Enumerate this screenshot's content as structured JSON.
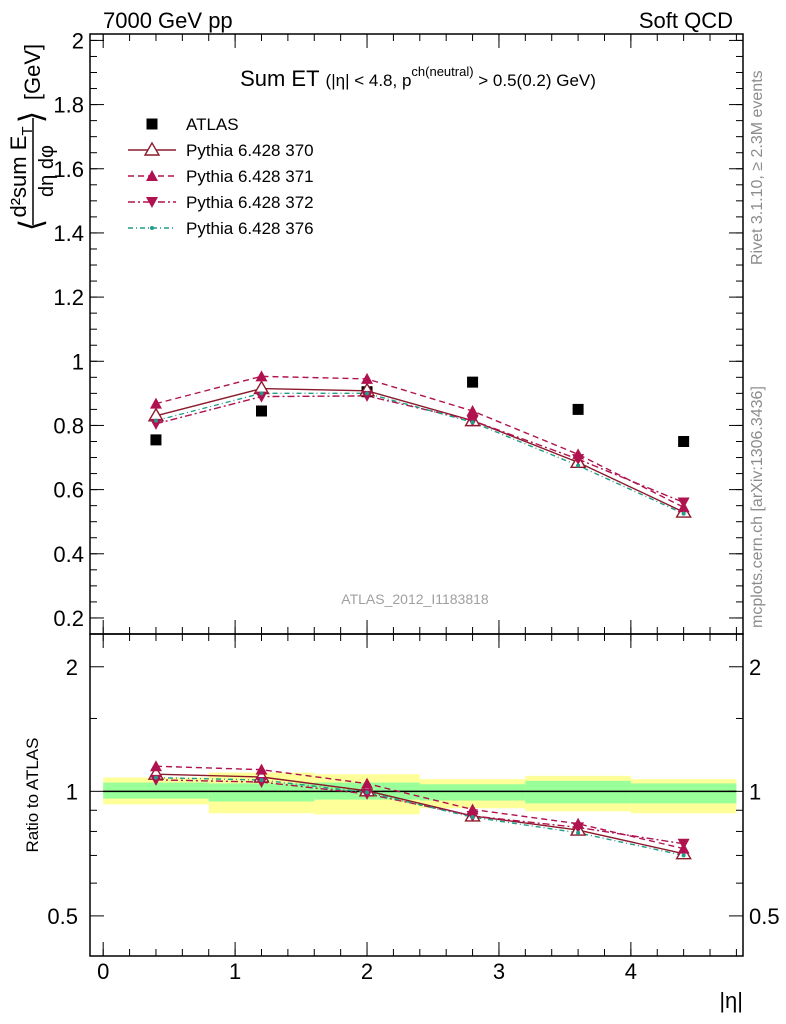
{
  "header": {
    "left": "7000 GeV pp",
    "right": "Soft QCD"
  },
  "side_notes": {
    "rivet": "Rivet 3.1.10, ≥ 2.3M events",
    "mcplots": "mcplots.cern.ch [arXiv:1306.3436]"
  },
  "watermark": "ATLAS_2012_I1183818",
  "chart_data": [
    {
      "type": "scatter",
      "panel": "main",
      "title_main": "Sum ET",
      "title_sub": "(|η| < 4.8, p",
      "title_sup": "ch(neutral)",
      "title_tail": " > 0.5(0.2) GeV)",
      "ylabel": {
        "bracket_open": "⟨",
        "num": "d²sum E",
        "num_sub": "T",
        "den": "dη dφ",
        "bracket_close": "⟩",
        "unit": "[GeV]"
      },
      "xlim": [
        -0.1,
        4.85
      ],
      "ylim": [
        0.15,
        2.02
      ],
      "y_ticks": [
        0.2,
        0.4,
        0.6,
        0.8,
        1,
        1.2,
        1.4,
        1.6,
        1.8,
        2
      ],
      "y_tick_labels": [
        "0.2",
        "0.4",
        "0.6",
        "0.8",
        "1",
        "1.2",
        "1.4",
        "1.6",
        "1.8",
        "2"
      ],
      "legend_position": "top-left",
      "x": [
        0.4,
        1.2,
        2.0,
        2.8,
        3.6,
        4.4
      ],
      "series": [
        {
          "name": "ATLAS",
          "values": [
            0.755,
            0.845,
            0.905,
            0.935,
            0.85,
            0.75
          ],
          "color": "#000000",
          "style": "data"
        },
        {
          "name": "Pythia 6.428 370",
          "values": [
            0.83,
            0.915,
            0.908,
            0.815,
            0.685,
            0.53
          ],
          "color": "#8b1a2b",
          "style": "solid-open-triangle"
        },
        {
          "name": "Pythia 6.428 371",
          "values": [
            0.868,
            0.953,
            0.945,
            0.845,
            0.71,
            0.545
          ],
          "color": "#b0124f",
          "style": "dashed-up-triangle"
        },
        {
          "name": "Pythia 6.428 372",
          "values": [
            0.805,
            0.89,
            0.892,
            0.815,
            0.695,
            0.56
          ],
          "color": "#b0124f",
          "style": "dashdot-down-triangle"
        },
        {
          "name": "Pythia 6.428 376",
          "values": [
            0.815,
            0.9,
            0.9,
            0.81,
            0.675,
            0.525
          ],
          "color": "#1f9e89",
          "style": "dashdot-dot"
        }
      ]
    },
    {
      "type": "line",
      "panel": "ratio",
      "ylabel": "Ratio to ATLAS",
      "xlabel": "|η|",
      "scale": "log",
      "xlim": [
        -0.1,
        4.85
      ],
      "ylim": [
        0.4,
        2.4
      ],
      "x_ticks": [
        0,
        1,
        2,
        3,
        4
      ],
      "x_tick_labels": [
        "0",
        "1",
        "2",
        "3",
        "4"
      ],
      "y_ticks": [
        0.5,
        1,
        2
      ],
      "y_tick_labels": [
        "0.5",
        "1",
        "2"
      ],
      "x": [
        0.4,
        1.2,
        2.0,
        2.8,
        3.6,
        4.4
      ],
      "bands": [
        {
          "x0": 0.0,
          "x1": 0.8,
          "yellow": [
            0.93,
            1.08
          ],
          "green": [
            0.96,
            1.05
          ]
        },
        {
          "x0": 0.8,
          "x1": 1.6,
          "yellow": [
            0.885,
            1.11
          ],
          "green": [
            0.945,
            1.045
          ]
        },
        {
          "x0": 1.6,
          "x1": 2.4,
          "yellow": [
            0.88,
            1.1
          ],
          "green": [
            0.955,
            1.05
          ]
        },
        {
          "x0": 2.4,
          "x1": 3.2,
          "yellow": [
            0.91,
            1.07
          ],
          "green": [
            0.95,
            1.04
          ]
        },
        {
          "x0": 3.2,
          "x1": 4.0,
          "yellow": [
            0.895,
            1.09
          ],
          "green": [
            0.935,
            1.06
          ]
        },
        {
          "x0": 4.0,
          "x1": 4.8,
          "yellow": [
            0.885,
            1.07
          ],
          "green": [
            0.935,
            1.045
          ]
        }
      ],
      "series": [
        {
          "name": "Pythia 6.428 370",
          "values": [
            1.1,
            1.083,
            1.003,
            0.872,
            0.806,
            0.707
          ],
          "color": "#8b1a2b",
          "style": "solid-open-triangle"
        },
        {
          "name": "Pythia 6.428 371",
          "values": [
            1.15,
            1.128,
            1.044,
            0.904,
            0.835,
            0.727
          ],
          "color": "#b0124f",
          "style": "dashed-up-triangle"
        },
        {
          "name": "Pythia 6.428 372",
          "values": [
            1.066,
            1.053,
            0.986,
            0.872,
            0.818,
            0.747
          ],
          "color": "#b0124f",
          "style": "dashdot-down-triangle"
        },
        {
          "name": "Pythia 6.428 376",
          "values": [
            1.079,
            1.065,
            0.994,
            0.866,
            0.794,
            0.7
          ],
          "color": "#1f9e89",
          "style": "dashdot-dot"
        }
      ]
    }
  ]
}
